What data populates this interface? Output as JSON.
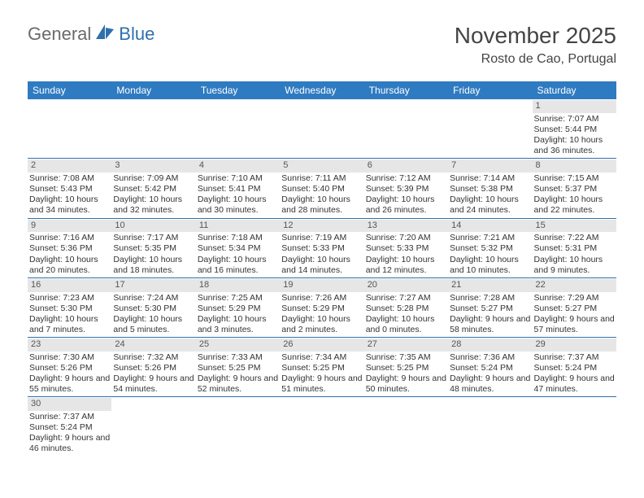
{
  "logo": {
    "part1": "General",
    "part2": "Blue"
  },
  "title": "November 2025",
  "location": "Rosto de Cao, Portugal",
  "colors": {
    "header_bg": "#2f7bc1",
    "header_text": "#ffffff",
    "rule": "#2f6fad",
    "daynum_bg": "#e6e6e6",
    "body_text": "#333333",
    "logo_gray": "#6a6a6a",
    "logo_blue": "#2f6fad"
  },
  "typography": {
    "title_fontsize": 28,
    "location_fontsize": 16,
    "dayheader_fontsize": 12,
    "cell_fontsize": 10.5
  },
  "day_names": [
    "Sunday",
    "Monday",
    "Tuesday",
    "Wednesday",
    "Thursday",
    "Friday",
    "Saturday"
  ],
  "weeks": [
    [
      {
        "n": null
      },
      {
        "n": null
      },
      {
        "n": null
      },
      {
        "n": null
      },
      {
        "n": null
      },
      {
        "n": null
      },
      {
        "n": 1,
        "sunrise": "7:07 AM",
        "sunset": "5:44 PM",
        "daylight": "10 hours and 36 minutes."
      }
    ],
    [
      {
        "n": 2,
        "sunrise": "7:08 AM",
        "sunset": "5:43 PM",
        "daylight": "10 hours and 34 minutes."
      },
      {
        "n": 3,
        "sunrise": "7:09 AM",
        "sunset": "5:42 PM",
        "daylight": "10 hours and 32 minutes."
      },
      {
        "n": 4,
        "sunrise": "7:10 AM",
        "sunset": "5:41 PM",
        "daylight": "10 hours and 30 minutes."
      },
      {
        "n": 5,
        "sunrise": "7:11 AM",
        "sunset": "5:40 PM",
        "daylight": "10 hours and 28 minutes."
      },
      {
        "n": 6,
        "sunrise": "7:12 AM",
        "sunset": "5:39 PM",
        "daylight": "10 hours and 26 minutes."
      },
      {
        "n": 7,
        "sunrise": "7:14 AM",
        "sunset": "5:38 PM",
        "daylight": "10 hours and 24 minutes."
      },
      {
        "n": 8,
        "sunrise": "7:15 AM",
        "sunset": "5:37 PM",
        "daylight": "10 hours and 22 minutes."
      }
    ],
    [
      {
        "n": 9,
        "sunrise": "7:16 AM",
        "sunset": "5:36 PM",
        "daylight": "10 hours and 20 minutes."
      },
      {
        "n": 10,
        "sunrise": "7:17 AM",
        "sunset": "5:35 PM",
        "daylight": "10 hours and 18 minutes."
      },
      {
        "n": 11,
        "sunrise": "7:18 AM",
        "sunset": "5:34 PM",
        "daylight": "10 hours and 16 minutes."
      },
      {
        "n": 12,
        "sunrise": "7:19 AM",
        "sunset": "5:33 PM",
        "daylight": "10 hours and 14 minutes."
      },
      {
        "n": 13,
        "sunrise": "7:20 AM",
        "sunset": "5:33 PM",
        "daylight": "10 hours and 12 minutes."
      },
      {
        "n": 14,
        "sunrise": "7:21 AM",
        "sunset": "5:32 PM",
        "daylight": "10 hours and 10 minutes."
      },
      {
        "n": 15,
        "sunrise": "7:22 AM",
        "sunset": "5:31 PM",
        "daylight": "10 hours and 9 minutes."
      }
    ],
    [
      {
        "n": 16,
        "sunrise": "7:23 AM",
        "sunset": "5:30 PM",
        "daylight": "10 hours and 7 minutes."
      },
      {
        "n": 17,
        "sunrise": "7:24 AM",
        "sunset": "5:30 PM",
        "daylight": "10 hours and 5 minutes."
      },
      {
        "n": 18,
        "sunrise": "7:25 AM",
        "sunset": "5:29 PM",
        "daylight": "10 hours and 3 minutes."
      },
      {
        "n": 19,
        "sunrise": "7:26 AM",
        "sunset": "5:29 PM",
        "daylight": "10 hours and 2 minutes."
      },
      {
        "n": 20,
        "sunrise": "7:27 AM",
        "sunset": "5:28 PM",
        "daylight": "10 hours and 0 minutes."
      },
      {
        "n": 21,
        "sunrise": "7:28 AM",
        "sunset": "5:27 PM",
        "daylight": "9 hours and 58 minutes."
      },
      {
        "n": 22,
        "sunrise": "7:29 AM",
        "sunset": "5:27 PM",
        "daylight": "9 hours and 57 minutes."
      }
    ],
    [
      {
        "n": 23,
        "sunrise": "7:30 AM",
        "sunset": "5:26 PM",
        "daylight": "9 hours and 55 minutes."
      },
      {
        "n": 24,
        "sunrise": "7:32 AM",
        "sunset": "5:26 PM",
        "daylight": "9 hours and 54 minutes."
      },
      {
        "n": 25,
        "sunrise": "7:33 AM",
        "sunset": "5:25 PM",
        "daylight": "9 hours and 52 minutes."
      },
      {
        "n": 26,
        "sunrise": "7:34 AM",
        "sunset": "5:25 PM",
        "daylight": "9 hours and 51 minutes."
      },
      {
        "n": 27,
        "sunrise": "7:35 AM",
        "sunset": "5:25 PM",
        "daylight": "9 hours and 50 minutes."
      },
      {
        "n": 28,
        "sunrise": "7:36 AM",
        "sunset": "5:24 PM",
        "daylight": "9 hours and 48 minutes."
      },
      {
        "n": 29,
        "sunrise": "7:37 AM",
        "sunset": "5:24 PM",
        "daylight": "9 hours and 47 minutes."
      }
    ],
    [
      {
        "n": 30,
        "sunrise": "7:37 AM",
        "sunset": "5:24 PM",
        "daylight": "9 hours and 46 minutes."
      },
      {
        "n": null
      },
      {
        "n": null
      },
      {
        "n": null
      },
      {
        "n": null
      },
      {
        "n": null
      },
      {
        "n": null
      }
    ]
  ],
  "labels": {
    "sunrise": "Sunrise:",
    "sunset": "Sunset:",
    "daylight": "Daylight:"
  }
}
